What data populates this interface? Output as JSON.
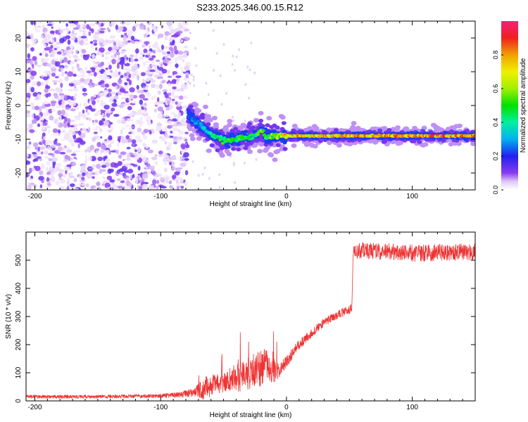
{
  "title": "S233.2025.346.00.15.R12",
  "chart_data": [
    {
      "type": "heatmap",
      "title": "S233.2025.346.00.15.R12",
      "xlabel": "Height of straight line (km)",
      "ylabel": "Frequency (Hz)",
      "xlim": [
        -207,
        150
      ],
      "ylim": [
        -25,
        25
      ],
      "xticks": [
        -200,
        -100,
        0,
        100
      ],
      "yticks": [
        -20,
        -10,
        0,
        10,
        20
      ],
      "colorbar": {
        "label": "Normalized spectral amplitude",
        "range": [
          0,
          1
        ],
        "ticks": [
          0.0,
          0.2,
          0.4,
          0.6,
          0.8
        ],
        "tick_labels": [
          "0.0",
          "0.2",
          "0.4",
          "0.6",
          "0.8"
        ],
        "colormap": "white-purple-blue-cyan-green-yellow-orange-red-magenta"
      },
      "noise_region": {
        "x_range": [
          -207,
          -78
        ],
        "y_range": [
          -25,
          25
        ],
        "amplitude_range": [
          0.02,
          0.15
        ]
      },
      "ridge": {
        "x": [
          -78,
          -70,
          -60,
          -50,
          -42,
          -35,
          -28,
          -22,
          -20,
          -16,
          -10,
          0,
          150
        ],
        "y": [
          -3,
          -5.5,
          -8.5,
          -10.5,
          -10,
          -9.5,
          -9.5,
          -8,
          -7,
          -9.5,
          -9,
          -9,
          -9
        ],
        "amplitude": [
          0.25,
          0.3,
          0.4,
          0.5,
          0.5,
          0.5,
          0.45,
          0.5,
          0.55,
          0.5,
          0.6,
          0.75,
          0.85
        ]
      },
      "colors": {
        "background": "#ffffff",
        "axis": "#000000"
      }
    },
    {
      "type": "line",
      "title": "",
      "xlabel": "Height of straight line (km)",
      "ylabel": "SNR (10 * v/v)",
      "xlim": [
        -207,
        150
      ],
      "ylim": [
        0,
        600
      ],
      "xticks": [
        -200,
        -100,
        0,
        100
      ],
      "yticks": [
        0,
        100,
        200,
        300,
        400,
        500
      ],
      "series": [
        {
          "name": "SNR",
          "color": "#ee3333",
          "x": [
            -207,
            -150,
            -100,
            -85,
            -75,
            -70,
            -65,
            -60,
            -55,
            -50,
            -45,
            -40,
            -35,
            -30,
            -25,
            -20,
            -15,
            -12,
            -10,
            -8,
            -5,
            0,
            5,
            10,
            20,
            30,
            40,
            48,
            52,
            53,
            55,
            80,
            100,
            150
          ],
          "values": [
            15,
            15,
            18,
            22,
            30,
            35,
            45,
            55,
            60,
            65,
            75,
            80,
            90,
            100,
            110,
            120,
            130,
            90,
            110,
            100,
            115,
            140,
            170,
            200,
            240,
            280,
            305,
            320,
            330,
            520,
            535,
            530,
            525,
            530
          ],
          "noise_amplitude": [
            6,
            6,
            7,
            10,
            15,
            25,
            45,
            40,
            35,
            40,
            45,
            50,
            55,
            60,
            65,
            70,
            60,
            50,
            45,
            30,
            25,
            20,
            20,
            18,
            15,
            15,
            15,
            15,
            15,
            30,
            30,
            30,
            30,
            30
          ]
        }
      ],
      "colors": {
        "background": "#ffffff",
        "axis": "#000000"
      }
    }
  ]
}
